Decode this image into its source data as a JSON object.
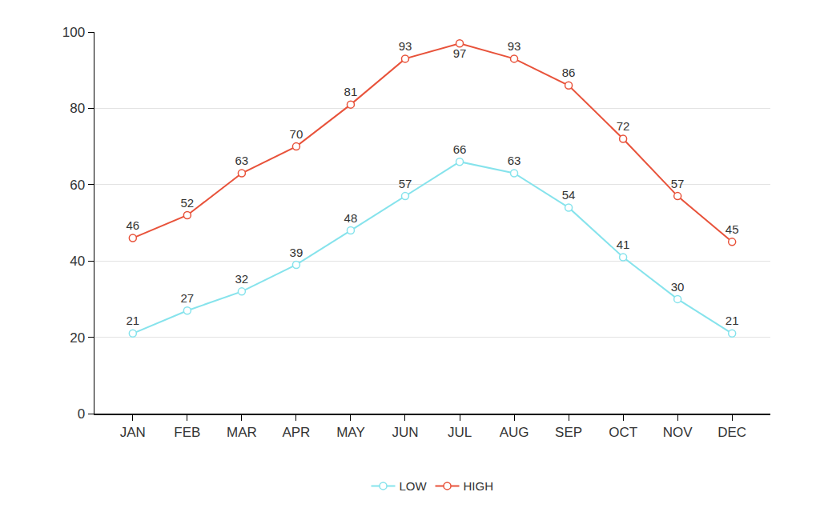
{
  "chart_data": {
    "type": "line",
    "categories": [
      "JAN",
      "FEB",
      "MAR",
      "APR",
      "MAY",
      "JUN",
      "JUL",
      "AUG",
      "SEP",
      "OCT",
      "NOV",
      "DEC"
    ],
    "series": [
      {
        "name": "LOW",
        "color": "#86e3ec",
        "values": [
          21,
          27,
          32,
          39,
          48,
          57,
          66,
          63,
          54,
          41,
          30,
          21
        ]
      },
      {
        "name": "HIGH",
        "color": "#e8523a",
        "values": [
          46,
          52,
          63,
          70,
          81,
          93,
          97,
          93,
          86,
          72,
          57,
          45
        ]
      }
    ],
    "ylim": [
      0,
      100
    ],
    "yticks": [
      0,
      20,
      40,
      60,
      80,
      100
    ],
    "grid": true,
    "legend": "bottom",
    "data_labels": true,
    "marker": "circle"
  }
}
